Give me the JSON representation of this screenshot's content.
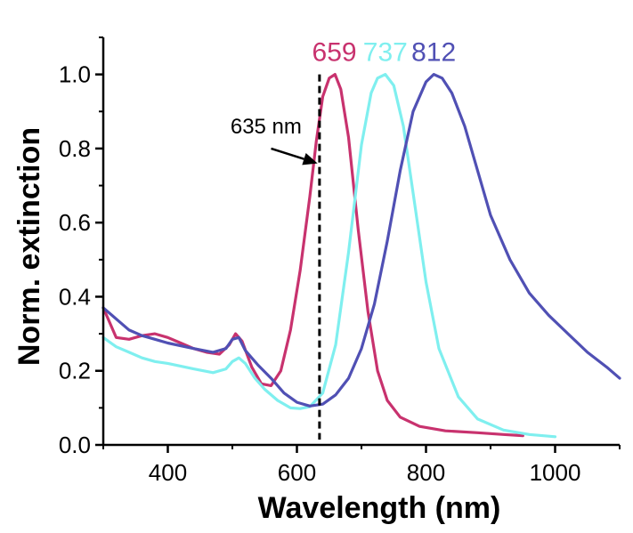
{
  "chart_data": {
    "type": "line",
    "title": "",
    "xlabel": "Wavelength (nm)",
    "ylabel": "Norm. extinction",
    "xlim": [
      300,
      1100
    ],
    "ylim": [
      0,
      1.1
    ],
    "x_ticks": [
      400,
      600,
      800,
      1000
    ],
    "x_tick_labels": [
      "400",
      "600",
      "800",
      "1000"
    ],
    "y_ticks": [
      0.0,
      0.2,
      0.4,
      0.6,
      0.8,
      1.0
    ],
    "y_tick_labels": [
      "0.0",
      "0.2",
      "0.4",
      "0.6",
      "0.8",
      "1.0"
    ],
    "series": [
      {
        "name": "659",
        "color": "#c8326e",
        "x": [
          300,
          320,
          340,
          360,
          380,
          400,
          420,
          440,
          460,
          480,
          495,
          505,
          515,
          530,
          545,
          560,
          575,
          590,
          605,
          620,
          630,
          640,
          650,
          659,
          668,
          680,
          695,
          710,
          725,
          740,
          760,
          790,
          830,
          880,
          920,
          950
        ],
        "y": [
          0.37,
          0.29,
          0.285,
          0.295,
          0.3,
          0.29,
          0.275,
          0.26,
          0.25,
          0.245,
          0.27,
          0.3,
          0.28,
          0.21,
          0.165,
          0.16,
          0.2,
          0.31,
          0.47,
          0.67,
          0.82,
          0.94,
          0.99,
          1.0,
          0.96,
          0.83,
          0.58,
          0.36,
          0.2,
          0.12,
          0.075,
          0.05,
          0.038,
          0.033,
          0.028,
          0.025
        ]
      },
      {
        "name": "737",
        "color": "#7fefef",
        "x": [
          300,
          320,
          340,
          360,
          380,
          400,
          440,
          470,
          490,
          500,
          510,
          520,
          535,
          550,
          570,
          590,
          605,
          620,
          640,
          660,
          680,
          700,
          715,
          725,
          737,
          750,
          765,
          780,
          800,
          820,
          850,
          880,
          920,
          960,
          1000
        ],
        "y": [
          0.29,
          0.265,
          0.25,
          0.235,
          0.225,
          0.22,
          0.205,
          0.195,
          0.205,
          0.225,
          0.235,
          0.22,
          0.18,
          0.15,
          0.12,
          0.1,
          0.098,
          0.103,
          0.14,
          0.27,
          0.52,
          0.81,
          0.95,
          0.99,
          1.0,
          0.97,
          0.86,
          0.68,
          0.44,
          0.26,
          0.13,
          0.07,
          0.04,
          0.028,
          0.022
        ]
      },
      {
        "name": "812",
        "color": "#5050b4",
        "x": [
          300,
          320,
          340,
          360,
          380,
          400,
          440,
          470,
          490,
          500,
          510,
          520,
          540,
          560,
          580,
          600,
          620,
          640,
          660,
          680,
          700,
          720,
          740,
          760,
          780,
          800,
          812,
          825,
          840,
          860,
          880,
          900,
          930,
          960,
          990,
          1020,
          1050,
          1080,
          1100
        ],
        "y": [
          0.37,
          0.34,
          0.31,
          0.295,
          0.285,
          0.275,
          0.26,
          0.25,
          0.26,
          0.285,
          0.29,
          0.255,
          0.215,
          0.18,
          0.14,
          0.115,
          0.105,
          0.11,
          0.135,
          0.18,
          0.26,
          0.38,
          0.55,
          0.74,
          0.9,
          0.98,
          1.0,
          0.99,
          0.95,
          0.86,
          0.74,
          0.62,
          0.5,
          0.41,
          0.35,
          0.3,
          0.25,
          0.21,
          0.18
        ]
      }
    ],
    "annotations": {
      "vline_x": 635,
      "vline_label": "635 nm",
      "arrow_tail": [
        560,
        0.8
      ],
      "arrow_head": [
        632,
        0.76
      ],
      "label_anchor": [
        555,
        0.86
      ],
      "peak_label_y": 1.06,
      "peak_label_positions": [
        658,
        737,
        812
      ]
    }
  }
}
